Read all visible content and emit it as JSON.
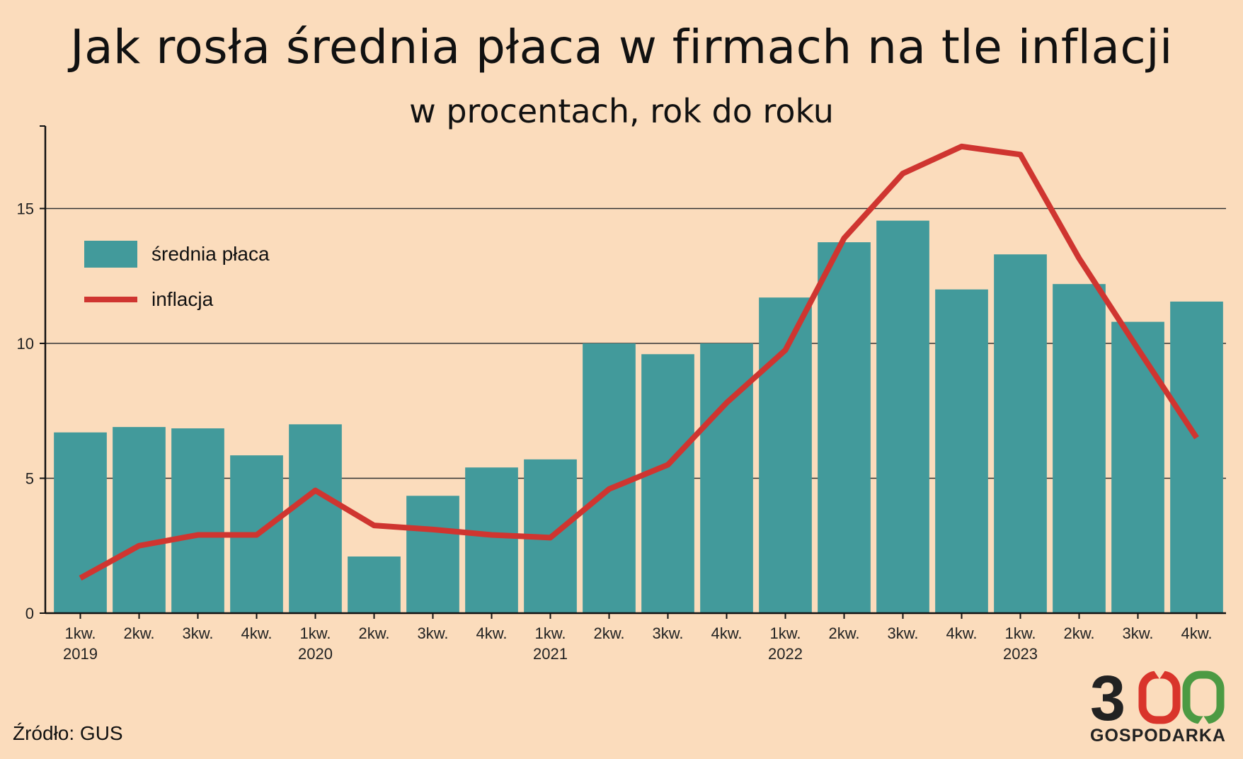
{
  "title": "Jak rosła średnia płaca w firmach na tle inflacji",
  "subtitle": "w procentach, rok do roku",
  "source": "Źródło: GUS",
  "logo": {
    "digits": "300",
    "word": "GOSPODARKA"
  },
  "colors": {
    "background": "#fbdcbc",
    "bar": "#429a9b",
    "line": "#cf3530",
    "grid": "#333333",
    "logo_red": "#d9342b",
    "logo_green": "#4c9a43",
    "logo_dark": "#222222"
  },
  "chart_data": {
    "type": "bar",
    "categories": [
      [
        "1kw.",
        "2019"
      ],
      [
        "2kw.",
        ""
      ],
      [
        "3kw.",
        ""
      ],
      [
        "4kw.",
        ""
      ],
      [
        "1kw.",
        "2020"
      ],
      [
        "2kw.",
        ""
      ],
      [
        "3kw.",
        ""
      ],
      [
        "4kw.",
        ""
      ],
      [
        "1kw.",
        "2021"
      ],
      [
        "2kw.",
        ""
      ],
      [
        "3kw.",
        ""
      ],
      [
        "4kw.",
        ""
      ],
      [
        "1kw.",
        "2022"
      ],
      [
        "2kw.",
        ""
      ],
      [
        "3kw.",
        ""
      ],
      [
        "4kw.",
        ""
      ],
      [
        "1kw.",
        "2023"
      ],
      [
        "2kw.",
        ""
      ],
      [
        "3kw.",
        ""
      ],
      [
        "4kw.",
        ""
      ]
    ],
    "series": [
      {
        "name": "średnia płaca",
        "type": "bar",
        "values": [
          6.7,
          6.9,
          6.85,
          5.85,
          7.0,
          2.1,
          4.35,
          5.4,
          5.7,
          10.0,
          9.6,
          10.0,
          11.7,
          13.75,
          14.55,
          12.0,
          13.3,
          12.2,
          10.8,
          11.55
        ]
      },
      {
        "name": "inflacja",
        "type": "line",
        "values": [
          1.3,
          2.5,
          2.9,
          2.9,
          4.55,
          3.25,
          3.1,
          2.9,
          2.8,
          4.6,
          5.5,
          7.8,
          9.75,
          13.9,
          16.3,
          17.3,
          17.0,
          13.15,
          9.8,
          6.5
        ]
      }
    ],
    "y_ticks": [
      "0",
      "5",
      "10",
      "15"
    ],
    "ylim": [
      0,
      18
    ],
    "grid": true,
    "legend_position": "top-left"
  }
}
